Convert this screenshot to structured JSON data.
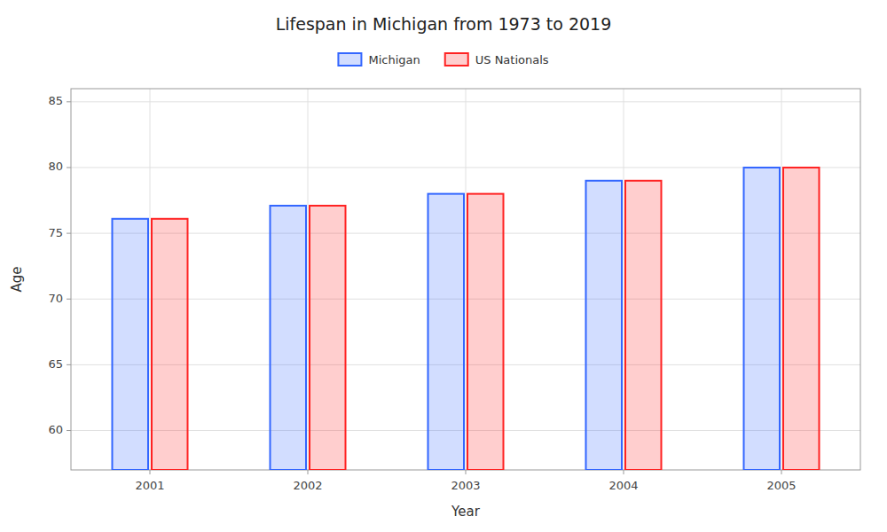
{
  "chart_data": {
    "type": "bar",
    "title": "Lifespan in Michigan from 1973 to 2019",
    "x_label": "Year",
    "y_label": "Age",
    "categories": [
      "2001",
      "2002",
      "2003",
      "2004",
      "2005"
    ],
    "series": [
      {
        "name": "Michigan",
        "color": "#3366ff",
        "values": [
          76.1,
          77.1,
          78.0,
          79.0,
          80.0
        ]
      },
      {
        "name": "US Nationals",
        "color": "#ff2222",
        "values": [
          76.1,
          77.1,
          78.0,
          79.0,
          80.0
        ]
      }
    ],
    "ylim": [
      57,
      86
    ],
    "yticks": [
      60,
      65,
      70,
      75,
      80,
      85
    ],
    "grid": true,
    "legend": "top"
  }
}
